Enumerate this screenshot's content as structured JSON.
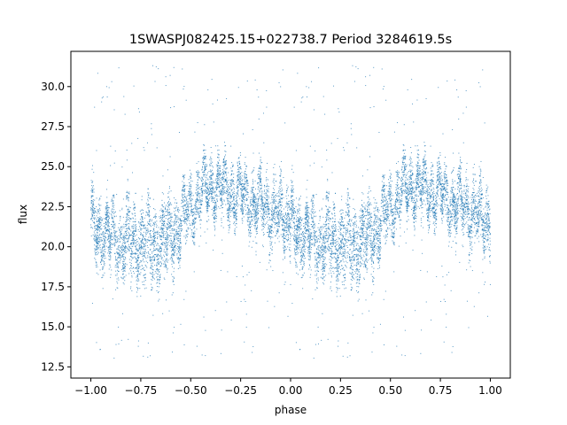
{
  "chart_data": {
    "type": "scatter",
    "title": "1SWASPJ082425.15+022738.7 Period 3284619.5s",
    "xlabel": "phase",
    "ylabel": "flux",
    "xlim": [
      -1.1,
      1.1
    ],
    "ylim": [
      11.8,
      32.2
    ],
    "xticks": [
      -1.0,
      -0.75,
      -0.5,
      -0.25,
      0.0,
      0.25,
      0.5,
      0.75,
      1.0
    ],
    "xtick_labels": [
      "−1.00",
      "−0.75",
      "−0.50",
      "−0.25",
      "0.00",
      "0.25",
      "0.50",
      "0.75",
      "1.00"
    ],
    "yticks": [
      12.5,
      15.0,
      17.5,
      20.0,
      22.5,
      25.0,
      27.5,
      30.0
    ],
    "ytick_labels": [
      "12.5",
      "15.0",
      "17.5",
      "20.0",
      "22.5",
      "25.0",
      "27.5",
      "30.0"
    ],
    "grid": false,
    "legend": "none",
    "marker_color": "#1f77b4",
    "phase_range": [
      -1.0,
      1.0
    ],
    "flux_profile": {
      "phase": [
        0.0,
        0.05,
        0.1,
        0.15,
        0.2,
        0.25,
        0.3,
        0.35,
        0.4,
        0.45,
        0.5,
        0.55,
        0.6,
        0.65,
        0.7,
        0.75,
        0.8,
        0.85,
        0.9,
        0.95,
        1.0
      ],
      "center": [
        21.5,
        21.0,
        20.6,
        20.4,
        20.3,
        20.4,
        20.2,
        20.4,
        20.8,
        21.5,
        22.4,
        23.4,
        23.8,
        23.6,
        23.4,
        23.2,
        23.0,
        22.6,
        22.2,
        21.8,
        21.5
      ],
      "spread_low": [
        2.3,
        2.4,
        2.5,
        2.6,
        2.8,
        3.0,
        3.0,
        3.0,
        2.8,
        2.5,
        2.2,
        2.0,
        2.0,
        2.0,
        2.0,
        2.1,
        2.2,
        2.3,
        2.4,
        2.4,
        2.3
      ],
      "spread_high": [
        2.3,
        2.4,
        2.5,
        2.6,
        2.6,
        2.6,
        2.6,
        2.6,
        2.5,
        2.4,
        2.2,
        2.0,
        2.0,
        2.0,
        2.0,
        2.0,
        2.1,
        2.2,
        2.3,
        2.3,
        2.3
      ]
    },
    "flux_scatter_range": [
      13.0,
      31.5
    ]
  }
}
